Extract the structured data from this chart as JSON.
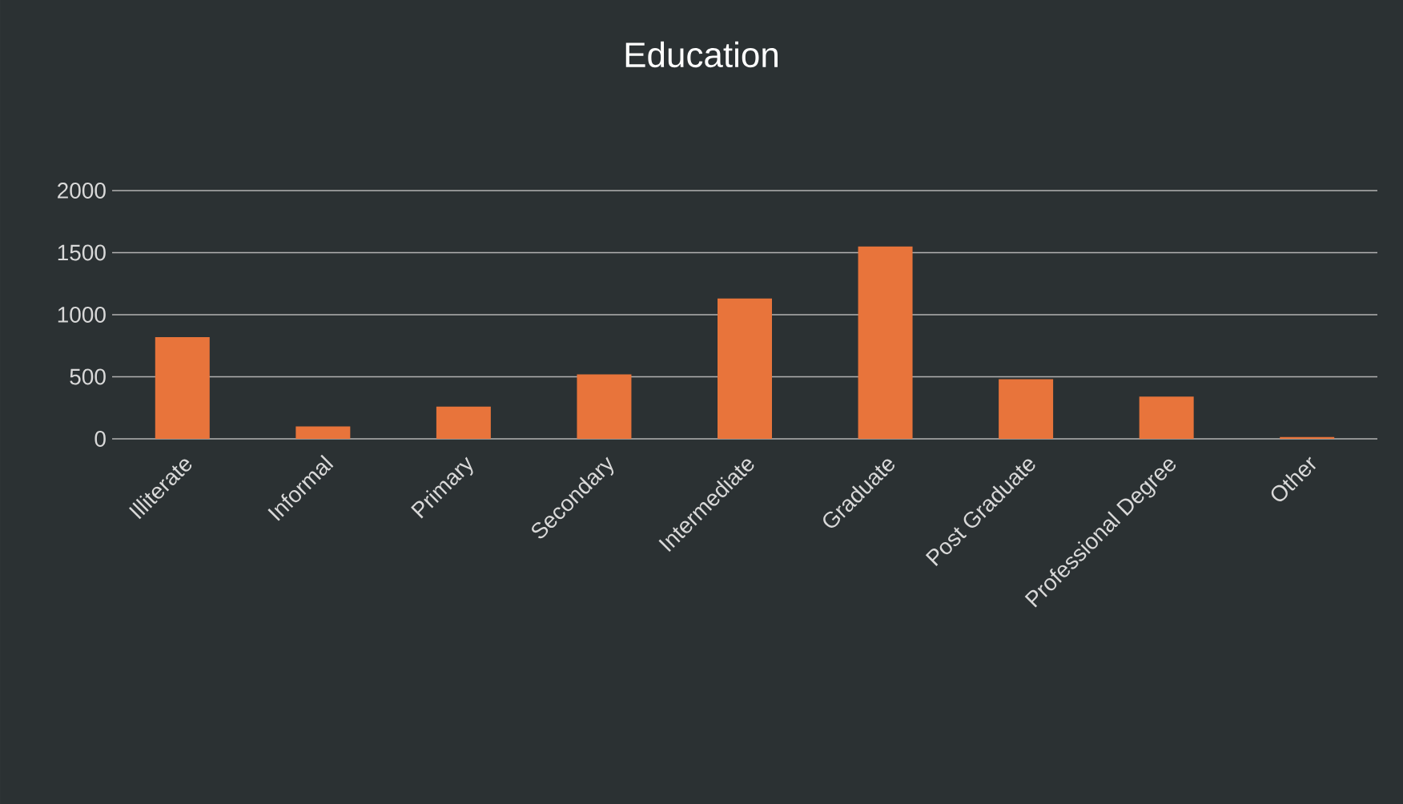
{
  "chart_data": {
    "type": "bar",
    "title": "Education",
    "categories": [
      "Illiterate",
      "Informal",
      "Primary",
      "Secondary",
      "Intermediate",
      "Graduate",
      "Post Graduate",
      "Professional Degree",
      "Other"
    ],
    "values": [
      820,
      100,
      260,
      520,
      1130,
      1550,
      480,
      340,
      15
    ],
    "color": "#e8743b",
    "ylim": [
      0,
      2000
    ],
    "yticks": [
      0,
      500,
      1000,
      1500,
      2000
    ],
    "grid": "y"
  }
}
